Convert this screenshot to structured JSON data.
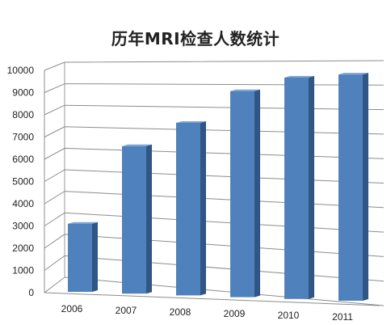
{
  "chart_data": {
    "type": "bar",
    "title": "历年MRI检查人数统计",
    "categories": [
      "2006",
      "2007",
      "2008",
      "2009",
      "2010",
      "2011"
    ],
    "values": [
      3000,
      6450,
      7500,
      8900,
      9500,
      9650
    ],
    "y_ticks": [
      "0",
      "1000",
      "2000",
      "3000",
      "4000",
      "5000",
      "6000",
      "7000",
      "8000",
      "9000",
      "10000"
    ],
    "ylim": [
      0,
      10000
    ],
    "grid": true,
    "bar_color": "#4f81bd",
    "bar_side_color": "#2f5685",
    "bar_top_color": "#7ea3d1"
  }
}
